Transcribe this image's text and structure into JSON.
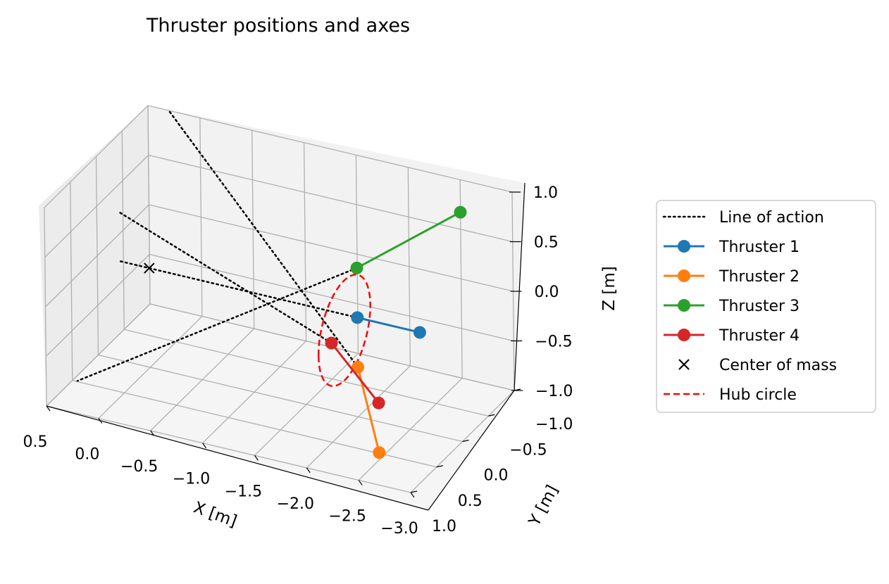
{
  "chart_data": {
    "type": "line",
    "projection": "3d",
    "title": "Thruster positions and axes",
    "xlabel": "X [m]",
    "ylabel": "Y [m]",
    "zlabel": "Z [m]",
    "xlim": [
      0.5,
      -3.0
    ],
    "ylim": [
      -1.0,
      1.0
    ],
    "zlim": [
      -1.0,
      1.0
    ],
    "xticks": [
      "0.5",
      "0.0",
      "−0.5",
      "−1.0",
      "−1.5",
      "−2.0",
      "−2.5",
      "−3.0"
    ],
    "yticks": [
      "−1.0",
      "−0.5",
      "0.0",
      "0.5",
      "1.0"
    ],
    "zticks": [
      "1.0",
      "0.5",
      "0.0",
      "−0.5",
      "−1.0"
    ],
    "grid": true,
    "legend_position": "right",
    "legend": [
      {
        "label": "Line of action",
        "color": "#000000",
        "style": "dotted"
      },
      {
        "label": "Thruster 1",
        "color": "#1f77b4",
        "style": "line-marker"
      },
      {
        "label": "Thruster 2",
        "color": "#ff7f0e",
        "style": "line-marker"
      },
      {
        "label": "Thruster 3",
        "color": "#2ca02c",
        "style": "line-marker"
      },
      {
        "label": "Thruster 4",
        "color": "#d62728",
        "style": "line-marker"
      },
      {
        "label": "Center of mass",
        "color": "#000000",
        "style": "x-marker"
      },
      {
        "label": "Hub circle",
        "color": "#ff0000",
        "style": "dashed"
      }
    ],
    "series": [
      {
        "name": "Thruster 1",
        "color": "#1f77b4",
        "points": [
          [
            -2.0,
            0.0,
            0.0
          ],
          [
            -2.6,
            0.0,
            0.0
          ]
        ]
      },
      {
        "name": "Thruster 2",
        "color": "#ff7f0e",
        "points": [
          [
            -2.0,
            0.0,
            -0.5
          ],
          [
            -2.6,
            0.8,
            -0.8
          ]
        ]
      },
      {
        "name": "Thruster 3",
        "color": "#2ca02c",
        "points": [
          [
            -2.0,
            0.0,
            0.5
          ],
          [
            -2.6,
            -0.8,
            0.8
          ]
        ]
      },
      {
        "name": "Thruster 4",
        "color": "#d62728",
        "points": [
          [
            -2.0,
            0.5,
            0.0
          ],
          [
            -2.6,
            0.8,
            -0.3
          ]
        ]
      }
    ],
    "center_of_mass": [
      0.0,
      0.0,
      0.0
    ],
    "hub_circle": {
      "center": [
        -2.0,
        0.25,
        0.0
      ],
      "radius": 0.5
    },
    "lines_of_action": [
      [
        [
          -2.0,
          0.0,
          0.0
        ],
        [
          0.3,
          0.0,
          0.0
        ]
      ],
      [
        [
          -2.0,
          0.0,
          -0.5
        ],
        [
          0.3,
          -1.0,
          1.0
        ]
      ],
      [
        [
          -2.0,
          0.0,
          0.5
        ],
        [
          0.3,
          0.8,
          -0.8
        ]
      ],
      [
        [
          -2.0,
          0.5,
          0.0
        ],
        [
          0.3,
          0.0,
          0.5
        ]
      ]
    ]
  }
}
